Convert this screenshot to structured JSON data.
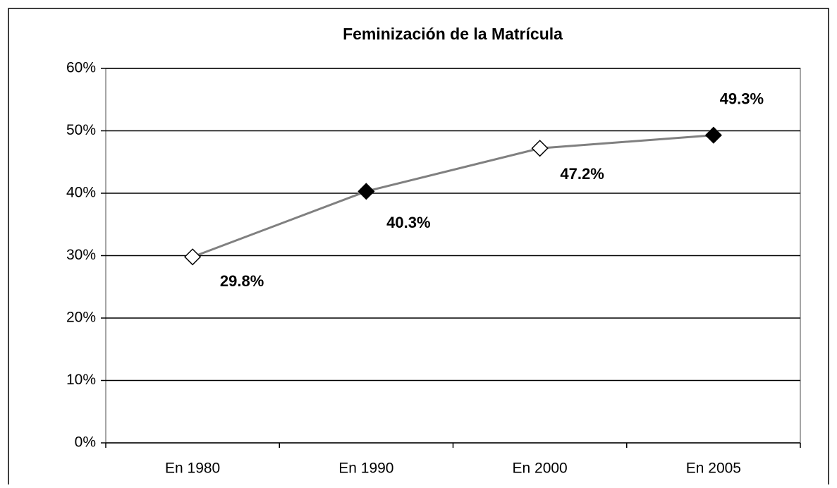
{
  "chart_data": {
    "type": "line",
    "title": "Feminización de la Matrícula",
    "categories": [
      "En 1980",
      "En 1990",
      "En 2000",
      "En 2005"
    ],
    "values": [
      29.8,
      40.3,
      47.2,
      49.3
    ],
    "value_labels": [
      "29.8%",
      "40.3%",
      "47.2%",
      "49.3%"
    ],
    "color": "#808080",
    "marker_fills": [
      "#ffffff",
      "#000000",
      "#ffffff",
      "#000000"
    ],
    "ylim": [
      0,
      60
    ],
    "yticks": [
      {
        "value": 0,
        "label": "0%"
      },
      {
        "value": 10,
        "label": "10%"
      },
      {
        "value": 20,
        "label": "20%"
      },
      {
        "value": 30,
        "label": "30%"
      },
      {
        "value": 40,
        "label": "40%"
      },
      {
        "value": 50,
        "label": "50%"
      },
      {
        "value": 60,
        "label": "60%"
      }
    ],
    "grid": true
  }
}
